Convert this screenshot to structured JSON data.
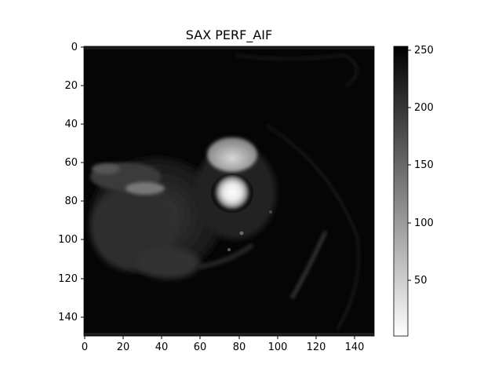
{
  "figure": {
    "title": "SAX PERF_AIF",
    "x_ticks": [
      "0",
      "20",
      "40",
      "60",
      "80",
      "100",
      "120",
      "140"
    ],
    "y_ticks": [
      "0",
      "20",
      "40",
      "60",
      "80",
      "100",
      "120",
      "140"
    ],
    "colorbar_ticks": [
      "50",
      "100",
      "150",
      "200",
      "250"
    ],
    "image_extent": [
      0,
      150
    ],
    "colorbar_range": [
      0,
      255
    ],
    "colormap": "inverted grayscale (0 = white, 255 = black)"
  }
}
